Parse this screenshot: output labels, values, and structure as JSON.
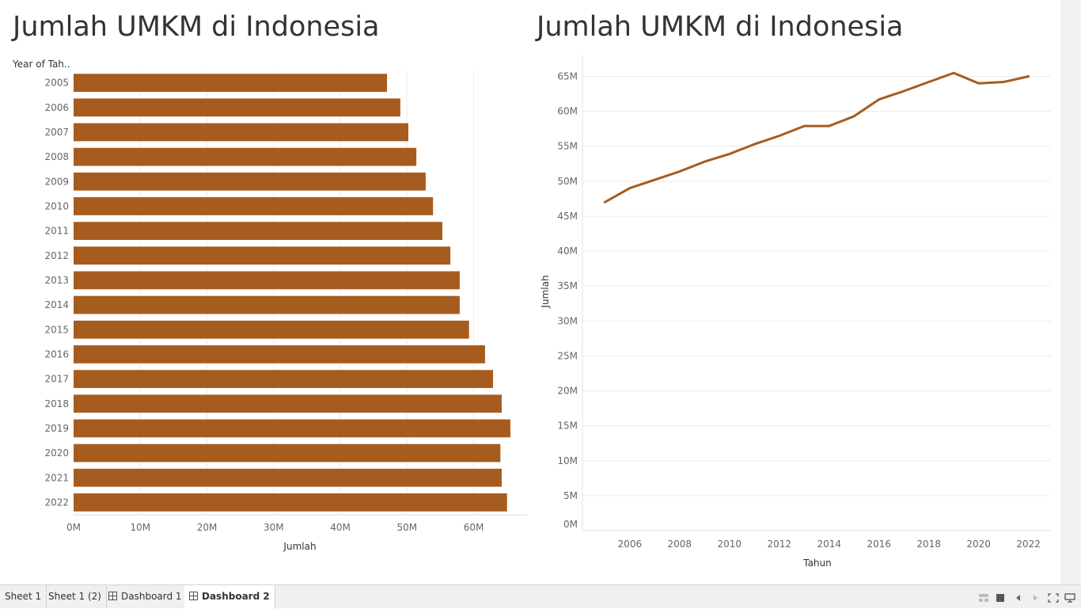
{
  "dashboard": {
    "left_title": "Jumlah UMKM di Indonesia",
    "right_title": "Jumlah UMKM di Indonesia"
  },
  "colors": {
    "bar": "#a65c1f",
    "line": "#a65c1f",
    "grid": "#ececec",
    "axis_text": "#666666"
  },
  "chart_data": [
    {
      "type": "bar",
      "orientation": "horizontal",
      "title": "Jumlah UMKM di Indonesia",
      "row_header": "Year of Tah..",
      "xlabel": "Jumlah",
      "categories": [
        "2005",
        "2006",
        "2007",
        "2008",
        "2009",
        "2010",
        "2011",
        "2012",
        "2013",
        "2014",
        "2015",
        "2016",
        "2017",
        "2018",
        "2019",
        "2020",
        "2021",
        "2022"
      ],
      "values": [
        47.0,
        49.0,
        50.2,
        51.4,
        52.8,
        53.9,
        55.3,
        56.5,
        57.9,
        57.9,
        59.3,
        61.7,
        62.9,
        64.2,
        65.5,
        64.0,
        64.2,
        65.0
      ],
      "xlim": [
        0,
        68
      ],
      "xticks": [
        0,
        10,
        20,
        30,
        40,
        50,
        60
      ],
      "xtick_labels": [
        "0M",
        "10M",
        "20M",
        "30M",
        "40M",
        "50M",
        "60M"
      ],
      "grid": true
    },
    {
      "type": "line",
      "title": "Jumlah UMKM di Indonesia",
      "xlabel": "Tahun",
      "ylabel": "Jumlah",
      "x": [
        2005,
        2006,
        2007,
        2008,
        2009,
        2010,
        2011,
        2012,
        2013,
        2014,
        2015,
        2016,
        2017,
        2018,
        2019,
        2020,
        2021,
        2022
      ],
      "values": [
        47.0,
        49.0,
        50.2,
        51.4,
        52.8,
        53.9,
        55.3,
        56.5,
        57.9,
        57.9,
        59.3,
        61.7,
        62.9,
        64.2,
        65.5,
        64.0,
        64.2,
        65.0
      ],
      "xlim": [
        2004.1,
        2022.9
      ],
      "ylim": [
        0,
        68
      ],
      "xticks": [
        2006,
        2008,
        2010,
        2012,
        2014,
        2016,
        2018,
        2020,
        2022
      ],
      "yticks": [
        0,
        5,
        10,
        15,
        20,
        25,
        30,
        35,
        40,
        45,
        50,
        55,
        60,
        65
      ],
      "ytick_labels": [
        "0M",
        "5M",
        "10M",
        "15M",
        "20M",
        "25M",
        "30M",
        "35M",
        "40M",
        "45M",
        "50M",
        "55M",
        "60M",
        "65M"
      ],
      "grid": true
    }
  ],
  "tabs": [
    {
      "label": "Sheet 1",
      "icon": "",
      "active": false
    },
    {
      "label": "Sheet 1 (2)",
      "icon": "",
      "active": false
    },
    {
      "label": "Dashboard 1",
      "icon": "dashboard-grid-icon",
      "active": false
    },
    {
      "label": "Dashboard 2",
      "icon": "dashboard-grid-icon",
      "active": true
    }
  ],
  "controls": [
    "view-thumbnails-icon",
    "view-filmstrip-icon",
    "previous-sheet-icon",
    "next-sheet-icon",
    "fullscreen-icon",
    "presentation-mode-icon"
  ]
}
